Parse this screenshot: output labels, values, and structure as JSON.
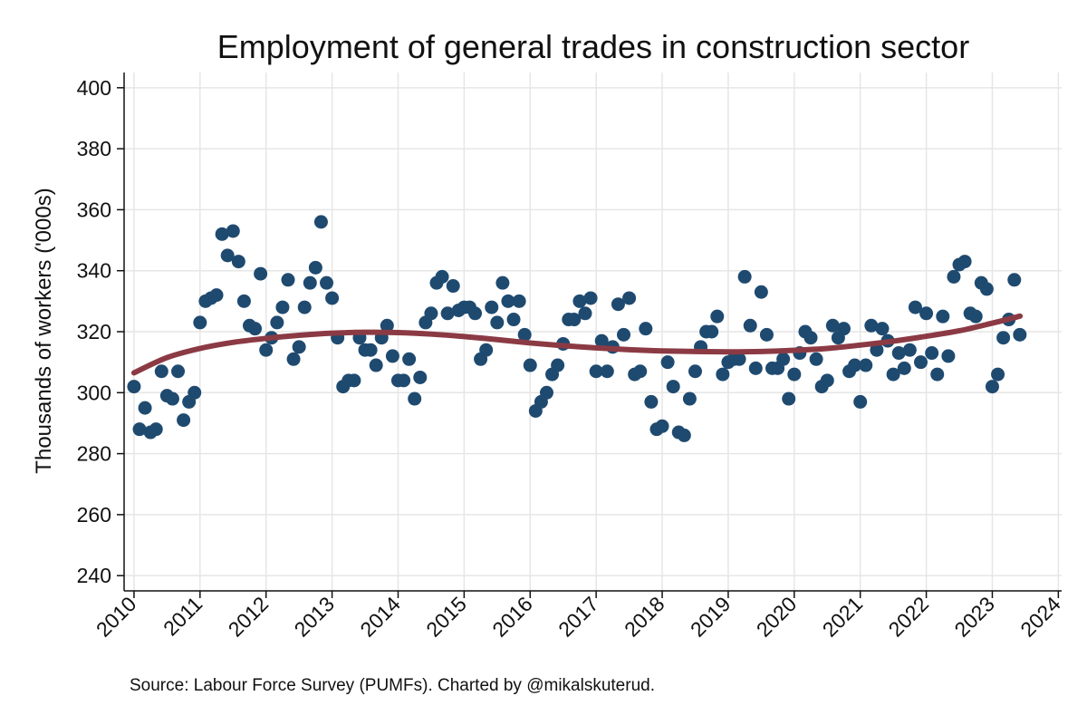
{
  "chart_data": {
    "type": "scatter",
    "title": "Employment of general trades in construction sector",
    "xlabel": "",
    "ylabel": "Thousands of workers ('000s)",
    "source": "Source: Labour Force Survey (PUMFs). Charted by @mikalskuterud.",
    "xlim": [
      2009.85,
      2024.05
    ],
    "ylim": [
      235,
      405
    ],
    "x_ticks": [
      2010,
      2011,
      2012,
      2013,
      2014,
      2015,
      2016,
      2017,
      2018,
      2019,
      2020,
      2021,
      2022,
      2023,
      2024
    ],
    "y_ticks": [
      240,
      260,
      280,
      300,
      320,
      340,
      360,
      380,
      400
    ],
    "grid": true,
    "colors": {
      "points": "#1f4a70",
      "trend": "#8b3a44",
      "grid": "#e6e6e6"
    },
    "series": [
      {
        "type": "scatter",
        "x_start": 2010.0,
        "x_step_months": 1,
        "values": [
          302,
          288,
          295,
          287,
          288,
          307,
          299,
          298,
          307,
          291,
          297,
          300,
          323,
          330,
          331,
          332,
          352,
          345,
          353,
          343,
          330,
          322,
          321,
          339,
          314,
          318,
          323,
          328,
          337,
          311,
          315,
          328,
          336,
          341,
          356,
          336,
          331,
          318,
          302,
          304,
          304,
          318,
          314,
          314,
          309,
          318,
          322,
          312,
          304,
          304,
          311,
          298,
          305,
          323,
          326,
          336,
          338,
          326,
          335,
          327,
          328,
          328,
          326,
          311,
          314,
          328,
          323,
          336,
          330,
          324,
          330,
          319,
          309,
          294,
          297,
          300,
          306,
          309,
          316,
          324,
          324,
          330,
          326,
          331,
          307,
          317,
          307,
          315,
          329,
          319,
          331,
          306,
          307,
          321,
          297,
          288,
          289,
          310,
          302,
          287,
          286,
          298,
          307,
          315,
          320,
          320,
          325,
          306,
          310,
          311,
          311,
          338,
          322,
          308,
          333,
          319,
          308,
          308,
          311,
          298,
          306,
          313,
          320,
          318,
          311,
          302,
          304,
          322,
          318,
          321,
          307,
          309,
          297,
          309,
          322,
          314,
          321,
          317,
          306,
          313,
          308,
          314,
          328,
          310,
          326,
          313,
          306,
          325,
          312,
          338,
          342,
          343,
          326,
          325,
          336,
          334,
          302,
          306,
          318,
          324,
          337,
          319
        ]
      },
      {
        "type": "line",
        "x": [
          2010.0,
          2010.5,
          2011.0,
          2011.5,
          2012.0,
          2012.5,
          2013.0,
          2013.5,
          2014.0,
          2014.5,
          2015.0,
          2015.5,
          2016.0,
          2016.5,
          2017.0,
          2017.5,
          2018.0,
          2018.5,
          2019.0,
          2019.5,
          2020.0,
          2020.5,
          2021.0,
          2021.5,
          2022.0,
          2022.5,
          2023.0,
          2023.42
        ],
        "values": [
          306.5,
          311.5,
          314.5,
          316.5,
          317.8,
          318.8,
          319.5,
          319.8,
          319.7,
          319.2,
          318.4,
          317.4,
          316.3,
          315.4,
          314.7,
          314.1,
          313.7,
          313.5,
          313.4,
          313.5,
          313.9,
          314.5,
          315.6,
          316.9,
          318.5,
          320.3,
          322.8,
          325.1
        ]
      }
    ]
  }
}
